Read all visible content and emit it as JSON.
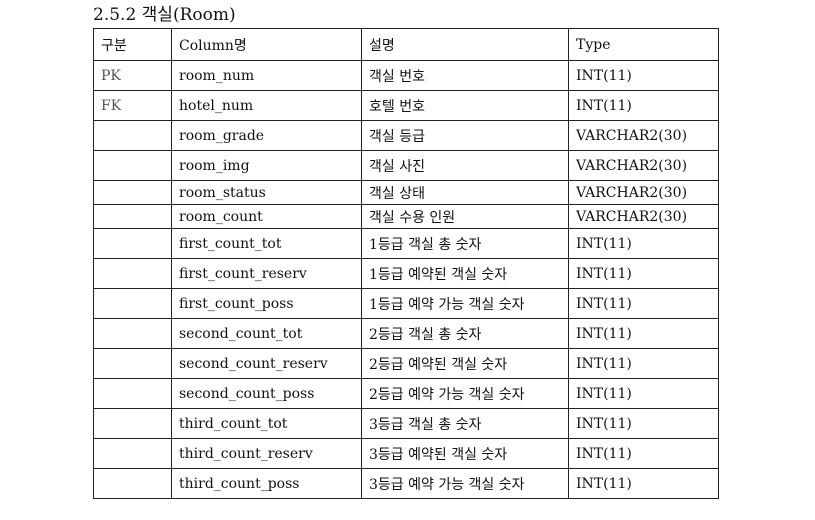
{
  "section": {
    "title": "2.5.2 객실(Room)"
  },
  "table": {
    "headers": [
      "구분",
      "Column명",
      "설명",
      "Type"
    ],
    "rows": [
      {
        "key": "PK",
        "column": "room_num",
        "desc": "객실 번호",
        "type": "INT(11)"
      },
      {
        "key": "FK",
        "column": "hotel_num",
        "desc": "호텔 번호",
        "type": "INT(11)"
      },
      {
        "key": "",
        "column": "room_grade",
        "desc": "객실 등급",
        "type": "VARCHAR2(30)"
      },
      {
        "key": "",
        "column": "room_img",
        "desc": "객실 사진",
        "type": "VARCHAR2(30)"
      },
      {
        "key": "",
        "column": "room_status",
        "desc": "객실 상태",
        "type": "VARCHAR2(30)"
      },
      {
        "key": "",
        "column": "room_count",
        "desc": "객실 수용 인원",
        "type": "VARCHAR2(30)"
      },
      {
        "key": "",
        "column": "first_count_tot",
        "desc": "1등급 객실 총 숫자",
        "type": "INT(11)"
      },
      {
        "key": "",
        "column": "first_count_reserv",
        "desc": "1등급 예약된 객실 숫자",
        "type": "INT(11)"
      },
      {
        "key": "",
        "column": "first_count_poss",
        "desc": "1등급 예약 가능 객실 숫자",
        "type": "INT(11)"
      },
      {
        "key": "",
        "column": "second_count_tot",
        "desc": "2등급 객실 총 숫자",
        "type": "INT(11)"
      },
      {
        "key": "",
        "column": "second_count_reserv",
        "desc": "2등급 예약된 객실 숫자",
        "type": "INT(11)"
      },
      {
        "key": "",
        "column": "second_count_poss",
        "desc": "2등급 예약 가능 객실 숫자",
        "type": "INT(11)"
      },
      {
        "key": "",
        "column": "third_count_tot",
        "desc": "3등급 객실 총 숫자",
        "type": "INT(11)"
      },
      {
        "key": "",
        "column": "third_count_reserv",
        "desc": "3등급 예약된 객실 숫자",
        "type": "INT(11)"
      },
      {
        "key": "",
        "column": "third_count_poss",
        "desc": "3등급 예약 가능 객실 숫자",
        "type": "INT(11)"
      }
    ]
  }
}
